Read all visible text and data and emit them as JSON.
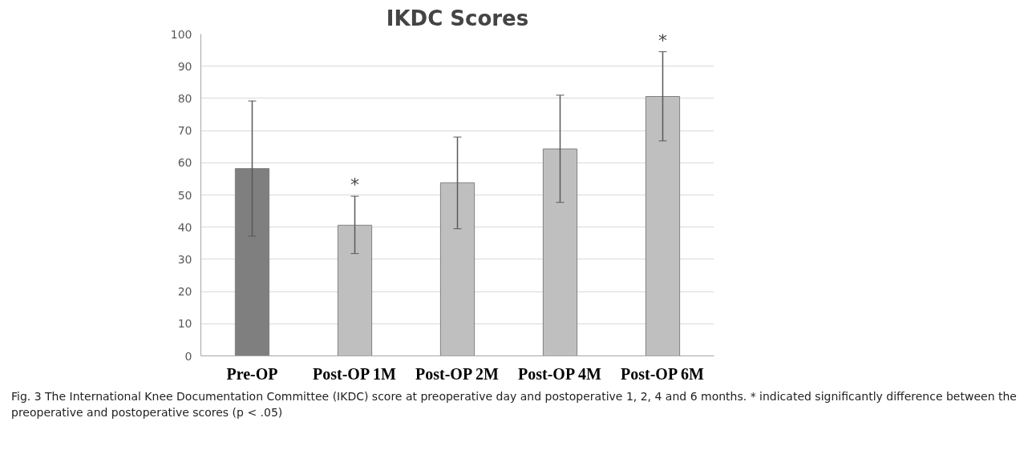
{
  "chart_data": {
    "type": "bar",
    "title": "IKDC Scores",
    "categories": [
      "Pre-OP",
      "Post-OP 1M",
      "Post-OP 2M",
      "Post-OP 4M",
      "Post-OP 6M"
    ],
    "values": [
      58.2,
      40.6,
      53.8,
      64.3,
      80.6
    ],
    "colors": [
      "#7f7f7f",
      "#bfbfbf",
      "#bfbfbf",
      "#bfbfbf",
      "#bfbfbf"
    ],
    "errors": [
      [
        37.2,
        79.2
      ],
      [
        31.8,
        49.6
      ],
      [
        39.5,
        68.0
      ],
      [
        47.7,
        81.0
      ],
      [
        66.8,
        94.5
      ]
    ],
    "ylim": [
      0,
      100
    ],
    "yticks": [
      0,
      10,
      20,
      30,
      40,
      50,
      60,
      70,
      80,
      90,
      100
    ],
    "grid": "y",
    "annotations": [
      {
        "text": "*",
        "x": "Post-OP 1M",
        "y": 49.6
      },
      {
        "text": "*",
        "x": "Post-OP 6M",
        "y": 94.5
      },
      "Fig. 3 The International Knee Documentation Committee (IKDC) score at preoperative day and postoperative 1, 2, 4 and 6 months. * indicated significantly difference between the preoperative and postoperative scores (p < .05)"
    ]
  }
}
